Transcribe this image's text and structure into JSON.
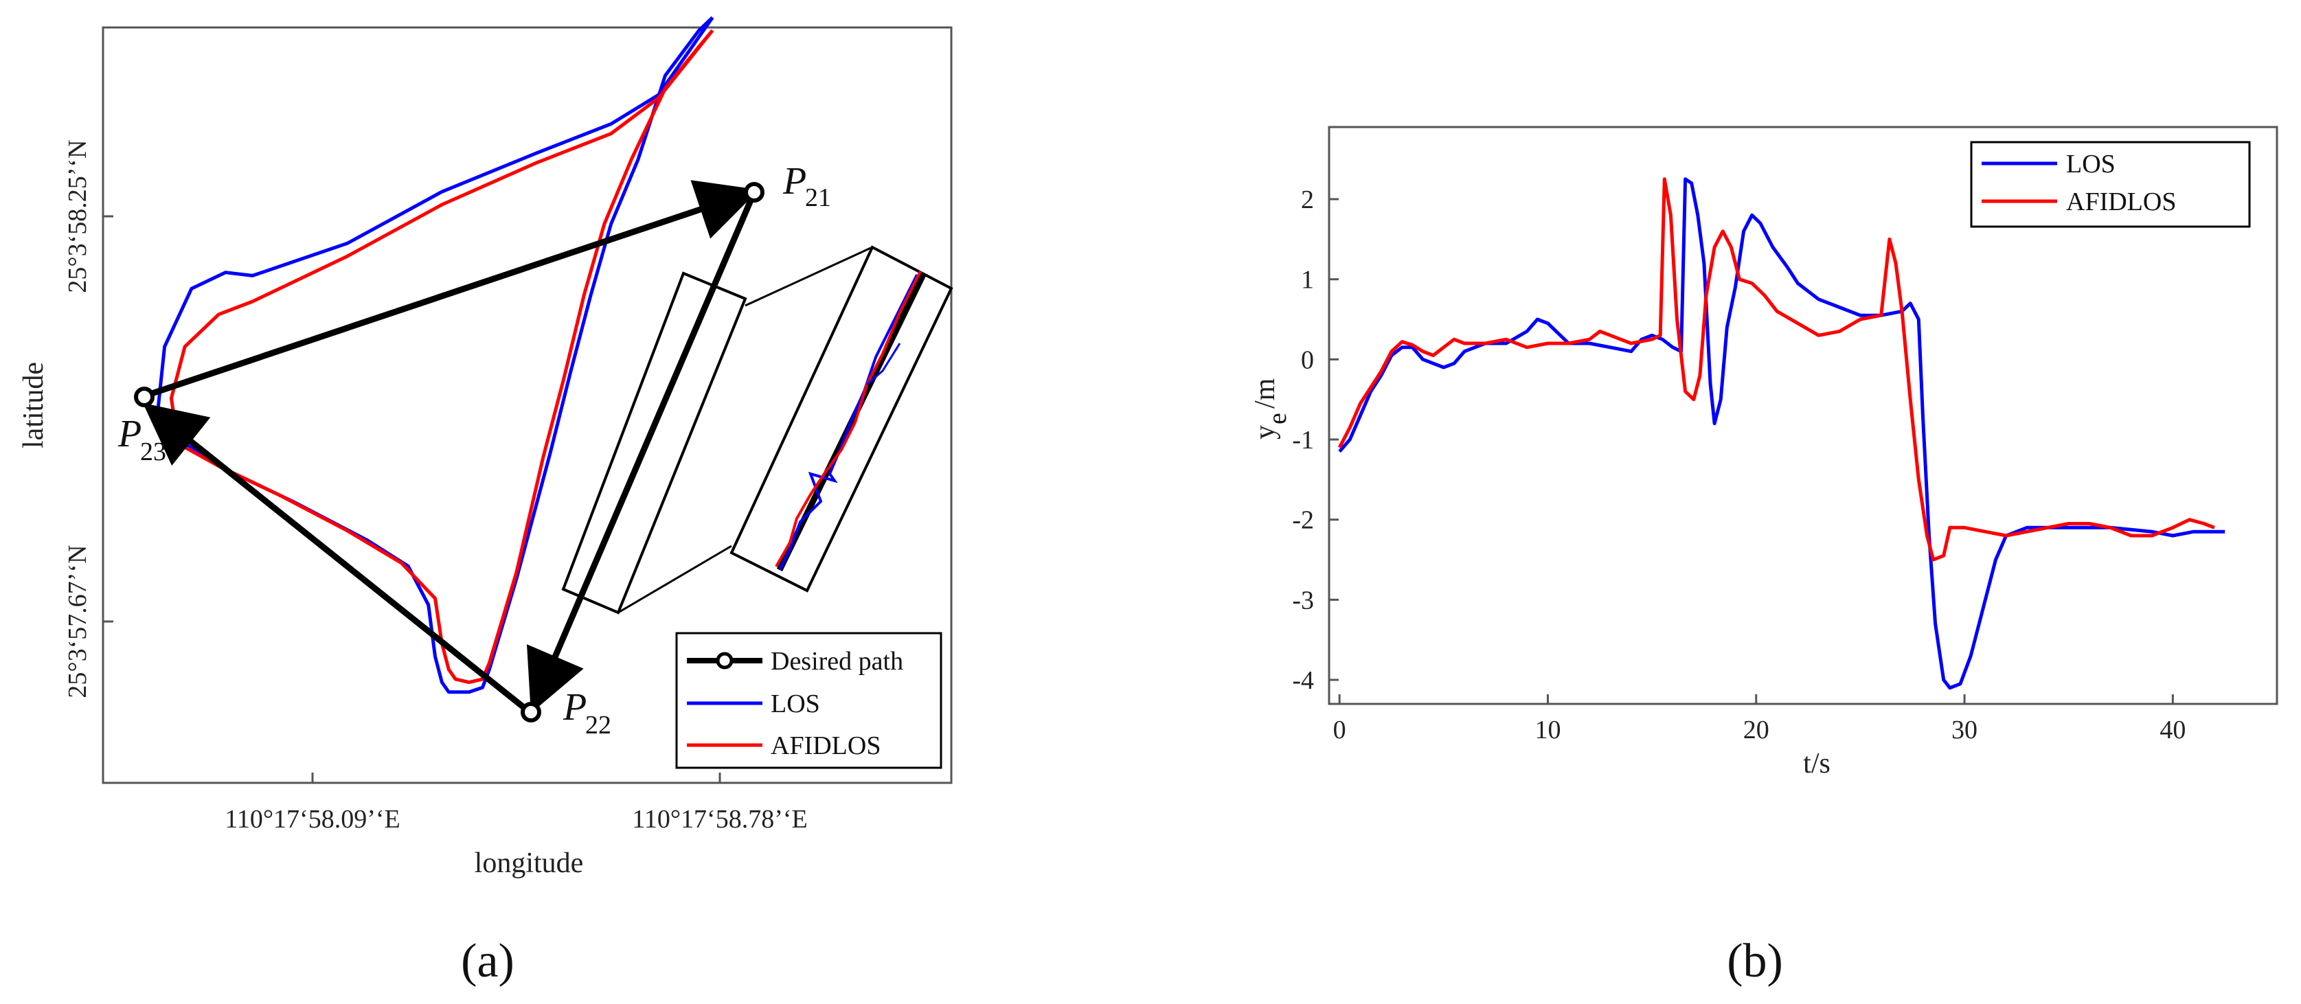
{
  "panel_a": {
    "caption": "(a)",
    "xlabel": "longitude",
    "ylabel": "latitude",
    "xticks": [
      "110°17‘58.09’‘E",
      "110°17‘58.78’‘E"
    ],
    "yticks": [
      "25°3‘58.25’‘N",
      "25°3‘57.67’‘N"
    ],
    "legend": [
      "Desired path",
      "LOS",
      "AFIDLOS"
    ],
    "waypoints": [
      {
        "name": "P",
        "sub": "21"
      },
      {
        "name": "P",
        "sub": "22"
      },
      {
        "name": "P",
        "sub": "23"
      }
    ],
    "colors": {
      "desired": "#000000",
      "los": "#0000ff",
      "afidlos": "#ff0000"
    }
  },
  "chart_data": [
    {
      "type": "line",
      "panel": "a",
      "xlabel": "longitude",
      "ylabel": "latitude",
      "note": "trajectory plot",
      "series": [
        {
          "name": "Desired path",
          "points": [
            [
              0.0,
              0.44
            ],
            [
              0.76,
              0.985
            ],
            [
              0.49,
              0.025
            ],
            [
              0.0,
              0.44
            ]
          ]
        },
        {
          "name": "LOS",
          "points": [
            [
              0.84,
              1.09
            ],
            [
              0.82,
              1.07
            ],
            [
              0.77,
              1.0
            ],
            [
              0.73,
              0.87
            ],
            [
              0.69,
              0.77
            ],
            [
              0.66,
              0.66
            ],
            [
              0.63,
              0.54
            ],
            [
              0.6,
              0.415
            ],
            [
              0.55,
              0.22
            ],
            [
              0.51,
              0.08
            ],
            [
              0.5,
              0.052
            ],
            [
              0.48,
              0.045
            ],
            [
              0.45,
              0.045
            ],
            [
              0.44,
              0.06
            ],
            [
              0.43,
              0.1
            ],
            [
              0.42,
              0.18
            ],
            [
              0.39,
              0.24
            ],
            [
              0.33,
              0.28
            ],
            [
              0.22,
              0.34
            ],
            [
              0.12,
              0.39
            ],
            [
              0.06,
              0.43
            ],
            [
              0.02,
              0.48
            ],
            [
              0.03,
              0.58
            ],
            [
              0.07,
              0.67
            ],
            [
              0.12,
              0.695
            ],
            [
              0.16,
              0.69
            ],
            [
              0.3,
              0.74
            ],
            [
              0.44,
              0.82
            ],
            [
              0.58,
              0.88
            ],
            [
              0.69,
              0.925
            ],
            [
              0.76,
              0.97
            ],
            [
              0.84,
              1.09
            ]
          ]
        },
        {
          "name": "AFIDLOS",
          "points": [
            [
              0.84,
              1.07
            ],
            [
              0.82,
              1.045
            ],
            [
              0.77,
              0.98
            ],
            [
              0.72,
              0.87
            ],
            [
              0.68,
              0.77
            ],
            [
              0.65,
              0.66
            ],
            [
              0.62,
              0.53
            ],
            [
              0.59,
              0.41
            ],
            [
              0.55,
              0.23
            ],
            [
              0.51,
              0.09
            ],
            [
              0.5,
              0.065
            ],
            [
              0.48,
              0.06
            ],
            [
              0.46,
              0.065
            ],
            [
              0.45,
              0.08
            ],
            [
              0.44,
              0.12
            ],
            [
              0.43,
              0.19
            ],
            [
              0.38,
              0.245
            ],
            [
              0.3,
              0.295
            ],
            [
              0.2,
              0.35
            ],
            [
              0.11,
              0.395
            ],
            [
              0.05,
              0.43
            ],
            [
              0.04,
              0.5
            ],
            [
              0.06,
              0.58
            ],
            [
              0.11,
              0.63
            ],
            [
              0.16,
              0.65
            ],
            [
              0.3,
              0.72
            ],
            [
              0.44,
              0.8
            ],
            [
              0.58,
              0.865
            ],
            [
              0.69,
              0.91
            ],
            [
              0.76,
              0.965
            ],
            [
              0.84,
              1.07
            ]
          ]
        }
      ]
    },
    {
      "type": "line",
      "panel": "b",
      "caption": "(b)",
      "xlabel": "t/s",
      "ylabel": "y",
      "ylabel_sub": "e",
      "ylabel_unit": "/m",
      "xlim": [
        -0.5,
        45
      ],
      "ylim": [
        -4.3,
        2.9
      ],
      "xticks": [
        0,
        10,
        20,
        30,
        40
      ],
      "yticks": [
        2,
        1,
        0,
        -1,
        -2,
        -3,
        -4
      ],
      "legend": [
        "LOS",
        "AFIDLOS"
      ],
      "series": [
        {
          "name": "LOS",
          "color": "#0000ff",
          "points": [
            [
              0.0,
              -1.15
            ],
            [
              0.5,
              -1.0
            ],
            [
              1.0,
              -0.7
            ],
            [
              1.5,
              -0.4
            ],
            [
              2.0,
              -0.2
            ],
            [
              2.5,
              0.05
            ],
            [
              3.0,
              0.15
            ],
            [
              3.5,
              0.15
            ],
            [
              4.0,
              0.0
            ],
            [
              4.5,
              -0.05
            ],
            [
              5.0,
              -0.1
            ],
            [
              5.5,
              -0.05
            ],
            [
              6.0,
              0.1
            ],
            [
              7.0,
              0.2
            ],
            [
              8.0,
              0.2
            ],
            [
              9.0,
              0.35
            ],
            [
              9.5,
              0.5
            ],
            [
              10.0,
              0.45
            ],
            [
              11.0,
              0.2
            ],
            [
              12.0,
              0.2
            ],
            [
              13.0,
              0.15
            ],
            [
              14.0,
              0.1
            ],
            [
              14.5,
              0.25
            ],
            [
              15.0,
              0.3
            ],
            [
              15.5,
              0.25
            ],
            [
              16.0,
              0.15
            ],
            [
              16.4,
              0.1
            ],
            [
              16.6,
              2.25
            ],
            [
              16.9,
              2.2
            ],
            [
              17.2,
              1.8
            ],
            [
              17.5,
              1.2
            ],
            [
              17.8,
              -0.3
            ],
            [
              18.0,
              -0.8
            ],
            [
              18.3,
              -0.5
            ],
            [
              18.6,
              0.4
            ],
            [
              19.0,
              0.9
            ],
            [
              19.4,
              1.6
            ],
            [
              19.8,
              1.8
            ],
            [
              20.2,
              1.7
            ],
            [
              20.8,
              1.4
            ],
            [
              21.5,
              1.15
            ],
            [
              22.0,
              0.95
            ],
            [
              23.0,
              0.75
            ],
            [
              24.0,
              0.65
            ],
            [
              25.0,
              0.55
            ],
            [
              26.0,
              0.55
            ],
            [
              27.0,
              0.6
            ],
            [
              27.4,
              0.7
            ],
            [
              27.8,
              0.5
            ],
            [
              28.0,
              -0.7
            ],
            [
              28.3,
              -2.2
            ],
            [
              28.6,
              -3.3
            ],
            [
              29.0,
              -4.0
            ],
            [
              29.3,
              -4.1
            ],
            [
              29.8,
              -4.05
            ],
            [
              30.3,
              -3.7
            ],
            [
              31.0,
              -3.0
            ],
            [
              31.5,
              -2.5
            ],
            [
              32.0,
              -2.2
            ],
            [
              33.0,
              -2.1
            ],
            [
              35.0,
              -2.1
            ],
            [
              37.0,
              -2.1
            ],
            [
              39.0,
              -2.15
            ],
            [
              40.0,
              -2.2
            ],
            [
              41.0,
              -2.15
            ],
            [
              42.5,
              -2.15
            ]
          ]
        },
        {
          "name": "AFIDLOS",
          "color": "#ff0000",
          "points": [
            [
              0.0,
              -1.1
            ],
            [
              0.5,
              -0.85
            ],
            [
              1.0,
              -0.55
            ],
            [
              1.5,
              -0.35
            ],
            [
              2.0,
              -0.15
            ],
            [
              2.5,
              0.1
            ],
            [
              3.0,
              0.22
            ],
            [
              3.5,
              0.18
            ],
            [
              4.0,
              0.1
            ],
            [
              4.5,
              0.05
            ],
            [
              5.0,
              0.15
            ],
            [
              5.5,
              0.25
            ],
            [
              6.0,
              0.2
            ],
            [
              7.0,
              0.2
            ],
            [
              8.0,
              0.25
            ],
            [
              9.0,
              0.15
            ],
            [
              10.0,
              0.2
            ],
            [
              11.0,
              0.2
            ],
            [
              12.0,
              0.25
            ],
            [
              12.5,
              0.35
            ],
            [
              13.0,
              0.3
            ],
            [
              13.5,
              0.25
            ],
            [
              14.0,
              0.2
            ],
            [
              15.0,
              0.25
            ],
            [
              15.4,
              0.3
            ],
            [
              15.6,
              2.25
            ],
            [
              15.9,
              1.8
            ],
            [
              16.2,
              0.5
            ],
            [
              16.6,
              -0.4
            ],
            [
              17.0,
              -0.5
            ],
            [
              17.3,
              -0.2
            ],
            [
              17.6,
              0.8
            ],
            [
              18.0,
              1.4
            ],
            [
              18.4,
              1.6
            ],
            [
              18.8,
              1.4
            ],
            [
              19.2,
              1.0
            ],
            [
              19.8,
              0.95
            ],
            [
              20.4,
              0.8
            ],
            [
              21.0,
              0.6
            ],
            [
              22.0,
              0.45
            ],
            [
              23.0,
              0.3
            ],
            [
              24.0,
              0.35
            ],
            [
              25.0,
              0.5
            ],
            [
              26.0,
              0.55
            ],
            [
              26.4,
              1.5
            ],
            [
              26.7,
              1.2
            ],
            [
              27.0,
              0.6
            ],
            [
              27.4,
              -0.5
            ],
            [
              27.8,
              -1.5
            ],
            [
              28.2,
              -2.2
            ],
            [
              28.5,
              -2.5
            ],
            [
              29.0,
              -2.45
            ],
            [
              29.3,
              -2.1
            ],
            [
              30.0,
              -2.1
            ],
            [
              31.0,
              -2.15
            ],
            [
              32.0,
              -2.2
            ],
            [
              33.0,
              -2.15
            ],
            [
              34.0,
              -2.1
            ],
            [
              35.0,
              -2.05
            ],
            [
              36.0,
              -2.05
            ],
            [
              37.0,
              -2.1
            ],
            [
              38.0,
              -2.2
            ],
            [
              39.0,
              -2.2
            ],
            [
              40.0,
              -2.1
            ],
            [
              40.8,
              -2.0
            ],
            [
              41.5,
              -2.05
            ],
            [
              42.0,
              -2.1
            ]
          ]
        }
      ]
    }
  ]
}
